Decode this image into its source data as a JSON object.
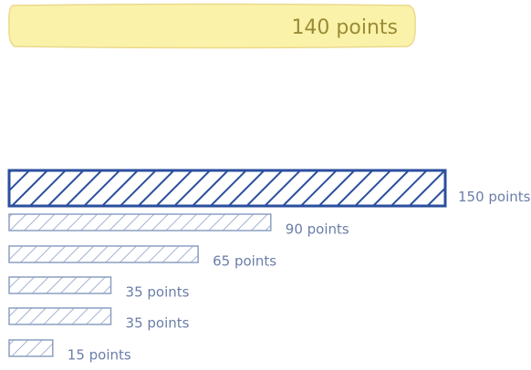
{
  "chart_data": {
    "type": "bar",
    "orientation": "horizontal",
    "annotation": "140 points",
    "categories": [
      null,
      null,
      null,
      null,
      null,
      null
    ],
    "values": [
      150,
      90,
      65,
      35,
      35,
      15
    ],
    "value_labels": [
      "150 points",
      "90 points",
      "65 points",
      "35 points",
      "35 points",
      "15 points"
    ],
    "colors": [
      "#2b4f9e",
      "#8c9fc2",
      "#8c9fc2",
      "#8c9fc2",
      "#8c9fc2",
      "#8c9fc2"
    ]
  }
}
